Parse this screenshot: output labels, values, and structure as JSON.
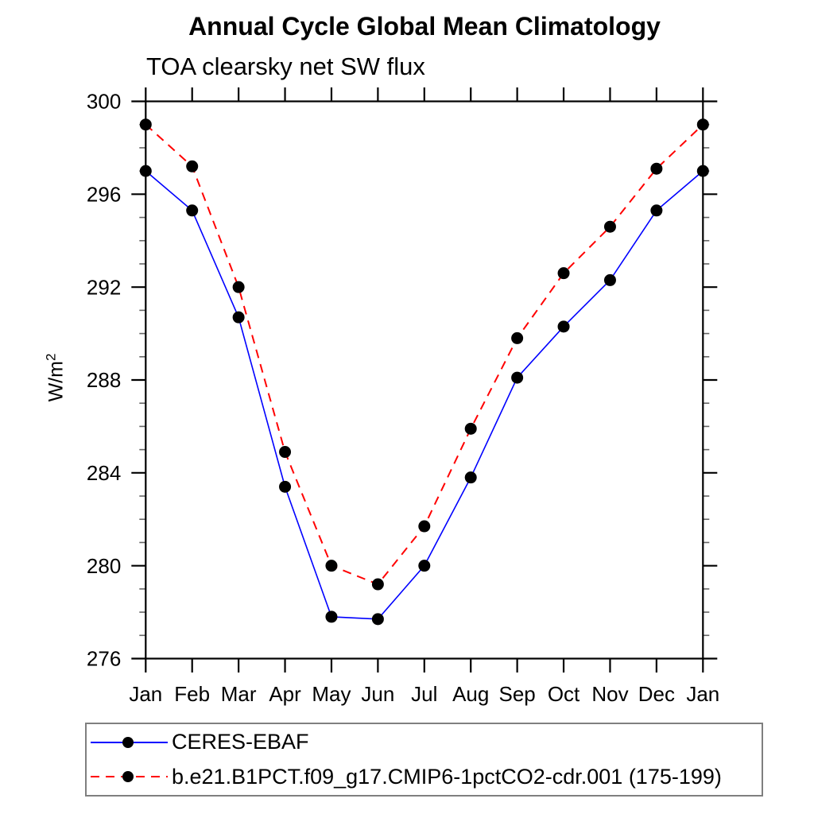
{
  "chart_data": {
    "type": "line",
    "title": "Annual Cycle Global Mean Climatology",
    "subtitle": "TOA clearsky net SW flux",
    "ylabel_base": "W/m",
    "ylabel_exponent": "2",
    "categories": [
      "Jan",
      "Feb",
      "Mar",
      "Apr",
      "May",
      "Jun",
      "Jul",
      "Aug",
      "Sep",
      "Oct",
      "Nov",
      "Dec",
      "Jan"
    ],
    "ylim": [
      276,
      300
    ],
    "ytick_labels": [
      "276",
      "280",
      "284",
      "288",
      "292",
      "296",
      "300"
    ],
    "ytick_major_step": 4,
    "ytick_minor_step": 1,
    "grid": false,
    "legend_position": "bottom-left",
    "series": [
      {
        "name": "CERES-EBAF",
        "line_color": "#0000ff",
        "line_style": "solid",
        "marker": "filled-circle",
        "marker_color": "#000000",
        "values": [
          297.0,
          295.3,
          290.7,
          283.4,
          277.8,
          277.7,
          280.0,
          283.8,
          288.1,
          290.3,
          292.3,
          295.3,
          297.0
        ]
      },
      {
        "name": "b.e21.B1PCT.f09_g17.CMIP6-1pctCO2-cdr.001 (175-199)",
        "line_color": "#ff0000",
        "line_style": "dashed",
        "marker": "filled-circle",
        "marker_color": "#000000",
        "values": [
          299.0,
          297.2,
          292.0,
          284.9,
          280.0,
          279.2,
          281.7,
          285.9,
          289.8,
          292.6,
          294.6,
          297.1,
          299.0
        ]
      }
    ]
  }
}
